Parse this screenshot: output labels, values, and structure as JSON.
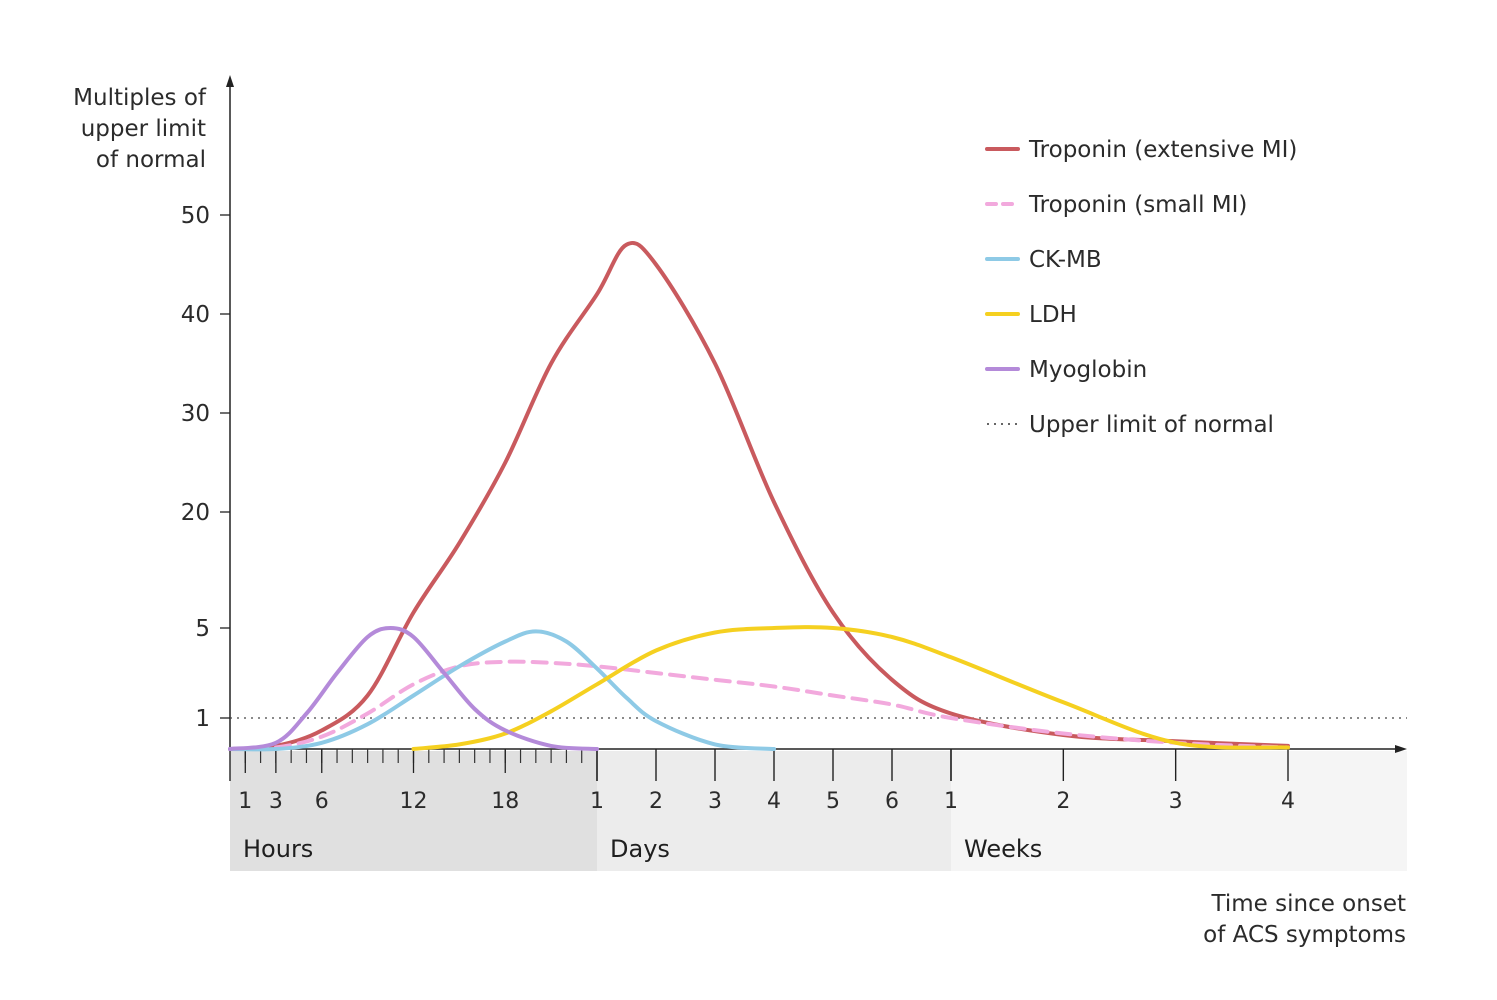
{
  "chart_data": {
    "type": "line",
    "ylabel_lines": [
      "Multiples of",
      "upper limit",
      "of normal"
    ],
    "xlabel_lines": [
      "Time since onset",
      "of ACS symptoms"
    ],
    "y_ticks": [
      {
        "label": "1",
        "value": 1
      },
      {
        "label": "5",
        "value": 5
      },
      {
        "label": "20",
        "value": 20
      },
      {
        "label": "30",
        "value": 30
      },
      {
        "label": "40",
        "value": 40
      },
      {
        "label": "50",
        "value": 50
      }
    ],
    "time_units": {
      "hours_per_day": 24,
      "days_per_week": 7
    },
    "time_bands": [
      {
        "label": "Hours",
        "unit": "hours",
        "start": 0,
        "end": 24,
        "ticks": [
          {
            "label": "1",
            "value": 1
          },
          {
            "label": "3",
            "value": 3
          },
          {
            "label": "6",
            "value": 6
          },
          {
            "label": "12",
            "value": 12
          },
          {
            "label": "18",
            "value": 18
          }
        ],
        "minor_step": 1
      },
      {
        "label": "Days",
        "unit": "days",
        "start": 1,
        "end": 7,
        "ticks": [
          {
            "label": "1",
            "value": 1
          },
          {
            "label": "2",
            "value": 2
          },
          {
            "label": "3",
            "value": 3
          },
          {
            "label": "4",
            "value": 4
          },
          {
            "label": "5",
            "value": 5
          },
          {
            "label": "6",
            "value": 6
          }
        ]
      },
      {
        "label": "Weeks",
        "unit": "weeks",
        "start": 1,
        "end": 4,
        "ticks": [
          {
            "label": "1",
            "value": 1
          },
          {
            "label": "2",
            "value": 2
          },
          {
            "label": "3",
            "value": 3
          },
          {
            "label": "4",
            "value": 4
          }
        ]
      }
    ],
    "upper_limit_of_normal": 1,
    "series": [
      {
        "name": "Troponin (extensive MI)",
        "color": "#c95a5e",
        "dash": "solid",
        "points": [
          {
            "unit": "hours",
            "t": 0,
            "v": 0
          },
          {
            "unit": "hours",
            "t": 3,
            "v": 0.1
          },
          {
            "unit": "hours",
            "t": 6,
            "v": 0.6
          },
          {
            "unit": "hours",
            "t": 9,
            "v": 2
          },
          {
            "unit": "hours",
            "t": 12,
            "v": 7
          },
          {
            "unit": "hours",
            "t": 15,
            "v": 16
          },
          {
            "unit": "hours",
            "t": 18,
            "v": 25
          },
          {
            "unit": "hours",
            "t": 21,
            "v": 35
          },
          {
            "unit": "days",
            "t": 1,
            "v": 42
          },
          {
            "unit": "days",
            "t": 1.5,
            "v": 47
          },
          {
            "unit": "days",
            "t": 2,
            "v": 45
          },
          {
            "unit": "days",
            "t": 3,
            "v": 35
          },
          {
            "unit": "days",
            "t": 4,
            "v": 21
          },
          {
            "unit": "days",
            "t": 5,
            "v": 7
          },
          {
            "unit": "days",
            "t": 6,
            "v": 2.7
          },
          {
            "unit": "weeks",
            "t": 1,
            "v": 1.2
          },
          {
            "unit": "weeks",
            "t": 2,
            "v": 0.45
          },
          {
            "unit": "weeks",
            "t": 3,
            "v": 0.25
          },
          {
            "unit": "weeks",
            "t": 4,
            "v": 0.1
          }
        ]
      },
      {
        "name": "Troponin (small MI)",
        "color": "#f2a9dd",
        "dash": "dashed",
        "points": [
          {
            "unit": "hours",
            "t": 0,
            "v": 0
          },
          {
            "unit": "hours",
            "t": 3,
            "v": 0.05
          },
          {
            "unit": "hours",
            "t": 6,
            "v": 0.4
          },
          {
            "unit": "hours",
            "t": 9,
            "v": 1.2
          },
          {
            "unit": "hours",
            "t": 12,
            "v": 2.5
          },
          {
            "unit": "hours",
            "t": 15,
            "v": 3.3
          },
          {
            "unit": "hours",
            "t": 18,
            "v": 3.5
          },
          {
            "unit": "hours",
            "t": 21,
            "v": 3.45
          },
          {
            "unit": "days",
            "t": 1,
            "v": 3.3
          },
          {
            "unit": "days",
            "t": 2,
            "v": 3.0
          },
          {
            "unit": "days",
            "t": 3,
            "v": 2.7
          },
          {
            "unit": "days",
            "t": 4,
            "v": 2.4
          },
          {
            "unit": "days",
            "t": 5,
            "v": 2.0
          },
          {
            "unit": "days",
            "t": 6,
            "v": 1.6
          },
          {
            "unit": "weeks",
            "t": 1,
            "v": 1.0
          },
          {
            "unit": "weeks",
            "t": 2,
            "v": 0.5
          },
          {
            "unit": "weeks",
            "t": 3,
            "v": 0.2
          },
          {
            "unit": "weeks",
            "t": 4,
            "v": 0.05
          }
        ]
      },
      {
        "name": "CK-MB",
        "color": "#8ecae6",
        "dash": "solid",
        "points": [
          {
            "unit": "hours",
            "t": 0,
            "v": 0
          },
          {
            "unit": "hours",
            "t": 3,
            "v": 0
          },
          {
            "unit": "hours",
            "t": 6,
            "v": 0.2
          },
          {
            "unit": "hours",
            "t": 9,
            "v": 0.8
          },
          {
            "unit": "hours",
            "t": 12,
            "v": 2
          },
          {
            "unit": "hours",
            "t": 15,
            "v": 3.3
          },
          {
            "unit": "hours",
            "t": 18,
            "v": 4.4
          },
          {
            "unit": "hours",
            "t": 20,
            "v": 4.85
          },
          {
            "unit": "hours",
            "t": 22,
            "v": 4.4
          },
          {
            "unit": "days",
            "t": 1,
            "v": 3.2
          },
          {
            "unit": "days",
            "t": 1.5,
            "v": 1.9
          },
          {
            "unit": "days",
            "t": 2,
            "v": 0.9
          },
          {
            "unit": "days",
            "t": 3,
            "v": 0.15
          },
          {
            "unit": "days",
            "t": 4,
            "v": 0
          }
        ]
      },
      {
        "name": "LDH",
        "color": "#f5d020",
        "dash": "solid",
        "points": [
          {
            "unit": "hours",
            "t": 12,
            "v": 0
          },
          {
            "unit": "hours",
            "t": 15,
            "v": 0.15
          },
          {
            "unit": "hours",
            "t": 18,
            "v": 0.5
          },
          {
            "unit": "hours",
            "t": 21,
            "v": 1.3
          },
          {
            "unit": "days",
            "t": 1,
            "v": 2.5
          },
          {
            "unit": "days",
            "t": 2,
            "v": 4
          },
          {
            "unit": "days",
            "t": 3,
            "v": 4.8
          },
          {
            "unit": "days",
            "t": 4,
            "v": 5
          },
          {
            "unit": "days",
            "t": 5,
            "v": 5
          },
          {
            "unit": "days",
            "t": 6,
            "v": 4.6
          },
          {
            "unit": "weeks",
            "t": 1,
            "v": 3.7
          },
          {
            "unit": "weeks",
            "t": 2,
            "v": 1.7
          },
          {
            "unit": "weeks",
            "t": 3,
            "v": 0.2
          },
          {
            "unit": "weeks",
            "t": 4,
            "v": 0.05
          }
        ]
      },
      {
        "name": "Myoglobin",
        "color": "#b48ad9",
        "dash": "solid",
        "points": [
          {
            "unit": "hours",
            "t": 0,
            "v": 0
          },
          {
            "unit": "hours",
            "t": 3,
            "v": 0.2
          },
          {
            "unit": "hours",
            "t": 5,
            "v": 1.2
          },
          {
            "unit": "hours",
            "t": 7,
            "v": 3
          },
          {
            "unit": "hours",
            "t": 9,
            "v": 4.6
          },
          {
            "unit": "hours",
            "t": 10.5,
            "v": 5
          },
          {
            "unit": "hours",
            "t": 12,
            "v": 4.6
          },
          {
            "unit": "hours",
            "t": 14,
            "v": 3
          },
          {
            "unit": "hours",
            "t": 16,
            "v": 1.4
          },
          {
            "unit": "hours",
            "t": 18,
            "v": 0.6
          },
          {
            "unit": "hours",
            "t": 21,
            "v": 0.1
          },
          {
            "unit": "days",
            "t": 1,
            "v": 0
          }
        ]
      }
    ],
    "legend": [
      {
        "label": "Troponin (extensive MI)",
        "color": "#c95a5e",
        "style": "solid"
      },
      {
        "label": "Troponin (small MI)",
        "color": "#f2a9dd",
        "style": "dashed"
      },
      {
        "label": "CK-MB",
        "color": "#8ecae6",
        "style": "solid"
      },
      {
        "label": "LDH",
        "color": "#f5d020",
        "style": "solid"
      },
      {
        "label": "Myoglobin",
        "color": "#b48ad9",
        "style": "solid"
      },
      {
        "label": "Upper limit of normal",
        "color": "#333333",
        "style": "dotted"
      }
    ],
    "legend_position": "top-right",
    "grid": false
  }
}
